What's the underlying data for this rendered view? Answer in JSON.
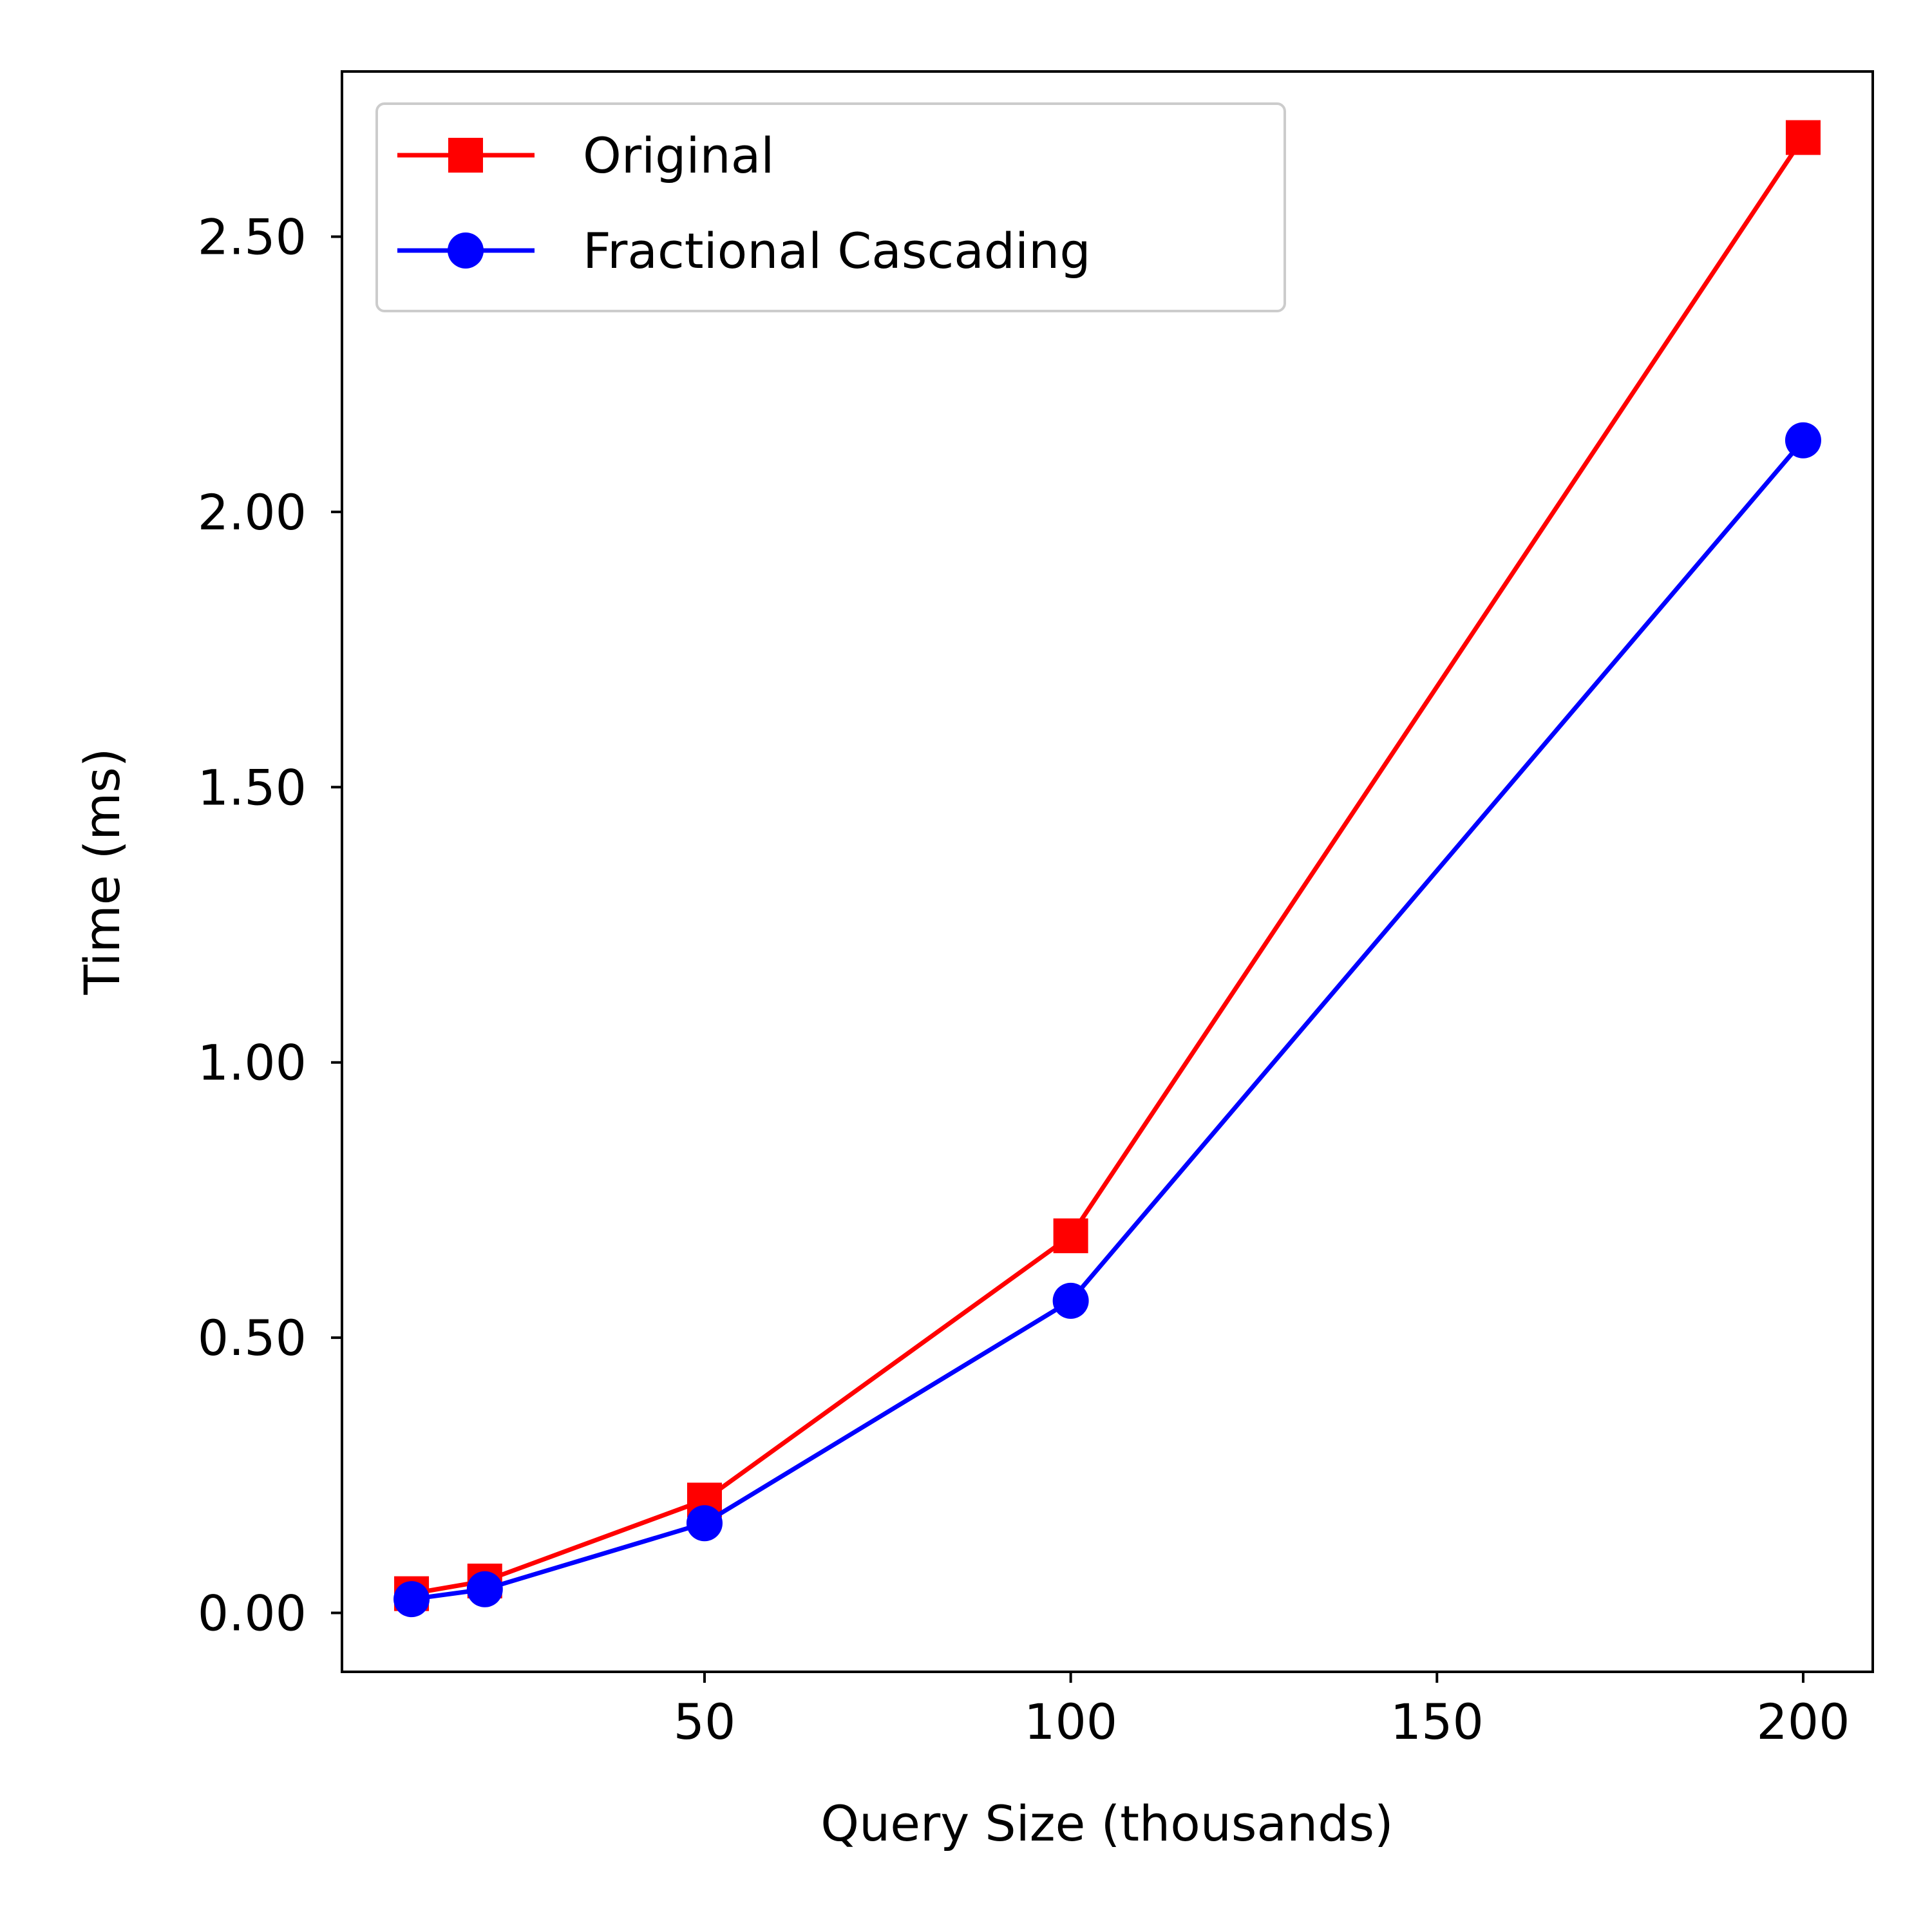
{
  "chart_data": {
    "type": "line",
    "title": "",
    "xlabel": "Query Size (thousands)",
    "ylabel": "Time (ms)",
    "xlim": [
      0.5,
      209.5
    ],
    "ylim": [
      -0.107,
      2.8
    ],
    "x_ticks": [
      50,
      100,
      150,
      200
    ],
    "x_tick_labels": [
      "50",
      "100",
      "150",
      "200"
    ],
    "y_ticks": [
      0,
      0.5,
      1,
      1.5,
      2,
      2.5
    ],
    "y_tick_labels": [
      "0.00",
      "0.50",
      "1.00",
      "1.50",
      "2.00",
      "2.50"
    ],
    "grid": false,
    "legend_position": "top-left",
    "x": [
      10,
      20,
      50,
      100,
      200
    ],
    "series": [
      {
        "name": "Original",
        "color": "#ff0000",
        "marker": "square",
        "values": [
          0.035,
          0.058,
          0.205,
          0.685,
          2.68
        ]
      },
      {
        "name": "Fractional Cascading",
        "color": "#0000ff",
        "marker": "circle",
        "values": [
          0.025,
          0.043,
          0.163,
          0.567,
          2.13
        ]
      }
    ]
  }
}
